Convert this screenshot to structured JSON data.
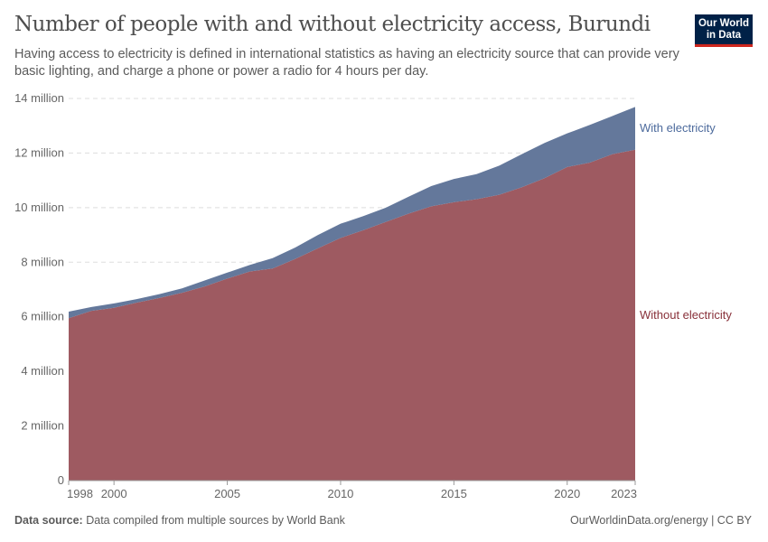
{
  "header": {
    "title": "Number of people with and without electricity access, Burundi",
    "subtitle": "Having access to electricity is defined in international statistics as having an electricity source that can provide very basic lighting, and charge a phone or power a radio for 4 hours per day.",
    "logo_text": "Our World in Data"
  },
  "footer": {
    "source_label": "Data source:",
    "source_text": "Data compiled from multiple sources by World Bank",
    "license": "OurWorldinData.org/energy | CC BY"
  },
  "chart_data": {
    "type": "area",
    "stacked": true,
    "title": "Number of people with and without electricity access, Burundi",
    "x": [
      1998,
      1999,
      2000,
      2001,
      2002,
      2003,
      2004,
      2005,
      2006,
      2007,
      2008,
      2009,
      2010,
      2011,
      2012,
      2013,
      2014,
      2015,
      2016,
      2017,
      2018,
      2019,
      2020,
      2021,
      2022,
      2023
    ],
    "series": [
      {
        "name": "Without electricity",
        "color": "#9e5a61",
        "label_color": "#883039",
        "values": [
          5.95,
          6.22,
          6.33,
          6.52,
          6.69,
          6.88,
          7.11,
          7.4,
          7.66,
          7.77,
          8.12,
          8.51,
          8.89,
          9.17,
          9.48,
          9.78,
          10.05,
          10.2,
          10.31,
          10.47,
          10.75,
          11.08,
          11.49,
          11.65,
          11.96,
          12.12
        ]
      },
      {
        "name": "With electricity",
        "color": "#64789b",
        "label_color": "#4c6a9c",
        "values": [
          0.24,
          0.14,
          0.16,
          0.13,
          0.14,
          0.16,
          0.22,
          0.22,
          0.24,
          0.38,
          0.42,
          0.49,
          0.52,
          0.52,
          0.52,
          0.62,
          0.74,
          0.85,
          0.92,
          1.07,
          1.21,
          1.29,
          1.23,
          1.38,
          1.4,
          1.57
        ]
      }
    ],
    "unit": "million",
    "ylim": [
      0,
      14
    ],
    "y_ticks": [
      0,
      2,
      4,
      6,
      8,
      10,
      12,
      14
    ],
    "y_tick_labels": [
      "0",
      "2 million",
      "4 million",
      "6 million",
      "8 million",
      "10 million",
      "12 million",
      "14 million"
    ],
    "x_ticks": [
      "1998",
      "2000",
      "2005",
      "2010",
      "2015",
      "2020",
      "2023"
    ],
    "grid": "horizontal dashed",
    "legend": "inline-right"
  }
}
